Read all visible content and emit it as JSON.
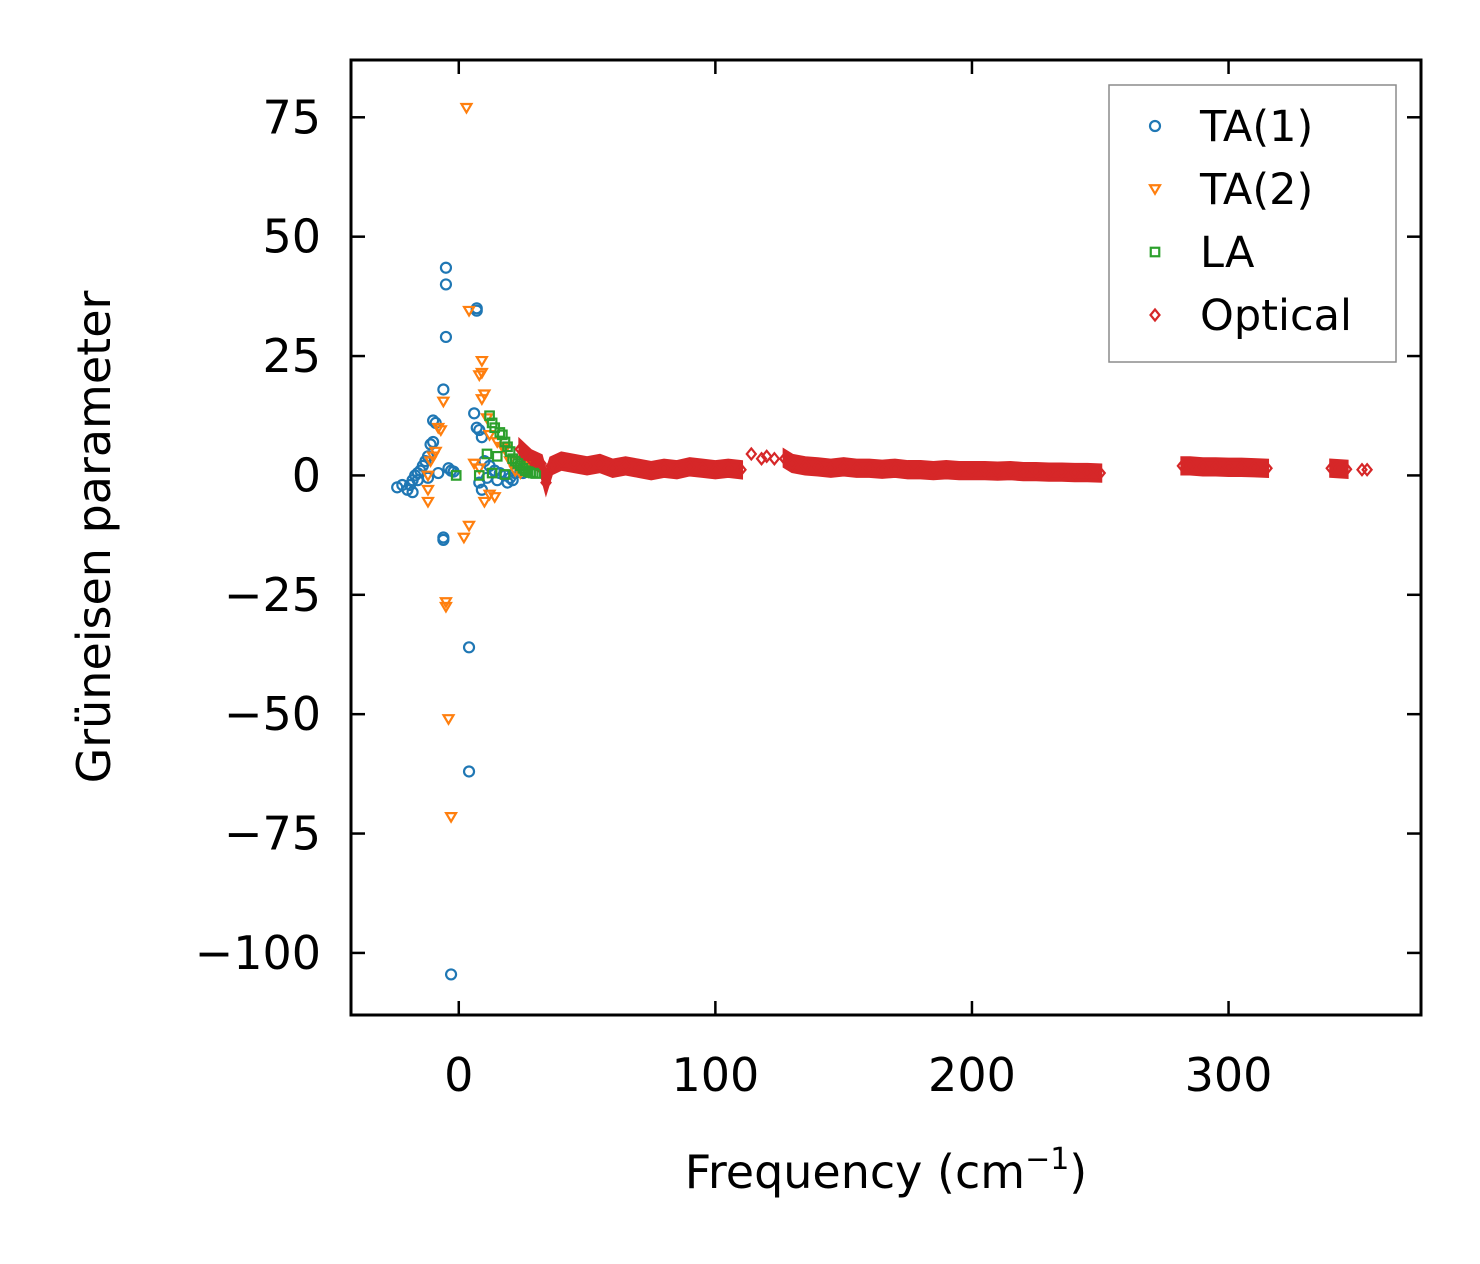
{
  "chart_data": {
    "type": "scatter",
    "title": "",
    "xlabel": "Frequency (cm",
    "xlabel_sup": "−1",
    "xlabel_end": ")",
    "ylabel": "Grüneisen parameter",
    "xlim": [
      -42,
      375
    ],
    "ylim": [
      -113,
      87
    ],
    "xticks": [
      0,
      100,
      200,
      300
    ],
    "xtick_labels": [
      "0",
      "100",
      "200",
      "300"
    ],
    "yticks": [
      75,
      50,
      25,
      0,
      -25,
      -50,
      -75,
      -100
    ],
    "ytick_labels": [
      "75",
      "50",
      "25",
      "0",
      "−25",
      "−50",
      "−75",
      "−100"
    ],
    "grid": false,
    "legend_position": "top-right",
    "series": [
      {
        "name": "TA(1)",
        "color": "#1f77b4",
        "marker": "circle",
        "points": [
          [
            -5,
            43.5
          ],
          [
            -5,
            40
          ],
          [
            -5,
            29
          ],
          [
            7,
            35
          ],
          [
            7,
            34.5
          ],
          [
            -6,
            18
          ],
          [
            -10,
            11.5
          ],
          [
            -9,
            11
          ],
          [
            6,
            13
          ],
          [
            7,
            10
          ],
          [
            8,
            9.5
          ],
          [
            9,
            8
          ],
          [
            -10,
            7
          ],
          [
            -11,
            6.5
          ],
          [
            -12,
            4
          ],
          [
            -13,
            3
          ],
          [
            -14,
            2
          ],
          [
            -15,
            1
          ],
          [
            -16,
            0.5
          ],
          [
            -17,
            0
          ],
          [
            -18,
            -1
          ],
          [
            -19,
            -2
          ],
          [
            -20,
            -3
          ],
          [
            -22,
            -2
          ],
          [
            -24,
            -2.5
          ],
          [
            -18,
            -3.5
          ],
          [
            -16,
            -1
          ],
          [
            -12,
            -0.5
          ],
          [
            -8,
            0.5
          ],
          [
            -4,
            1.5
          ],
          [
            -3,
            1
          ],
          [
            -2,
            0.8
          ],
          [
            9,
            -3
          ],
          [
            10,
            3
          ],
          [
            12,
            2
          ],
          [
            14,
            1
          ],
          [
            16,
            0.5
          ],
          [
            18,
            0
          ],
          [
            20,
            -0.5
          ],
          [
            22,
            0.5
          ],
          [
            24,
            1
          ],
          [
            -6,
            -13.5
          ],
          [
            -6,
            -13
          ],
          [
            4,
            -36
          ],
          [
            4,
            -62
          ],
          [
            -3,
            -104.5
          ],
          [
            8,
            -1.5
          ],
          [
            11,
            -0.5
          ],
          [
            15,
            -1
          ],
          [
            19,
            -1.5
          ],
          [
            21,
            -1
          ],
          [
            25,
            0.5
          ]
        ]
      },
      {
        "name": "TA(2)",
        "color": "#ff7f0e",
        "marker": "triangle-down",
        "points": [
          [
            3,
            77
          ],
          [
            4,
            34.5
          ],
          [
            9,
            24
          ],
          [
            9,
            21.5
          ],
          [
            8,
            21
          ],
          [
            10,
            17
          ],
          [
            9,
            16
          ],
          [
            -6,
            15.5
          ],
          [
            11,
            12
          ],
          [
            -8,
            10
          ],
          [
            -7,
            9.5
          ],
          [
            12,
            8.5
          ],
          [
            15,
            7
          ],
          [
            17,
            6
          ],
          [
            18,
            5.5
          ],
          [
            -9,
            5
          ],
          [
            -10,
            4
          ],
          [
            -11,
            3
          ],
          [
            20,
            3
          ],
          [
            6,
            2.5
          ],
          [
            8,
            1.5
          ],
          [
            -12,
            0
          ],
          [
            -12,
            -3
          ],
          [
            -12,
            -5.5
          ],
          [
            10,
            -5.5
          ],
          [
            12,
            -4
          ],
          [
            14,
            -4.5
          ],
          [
            4,
            -10.5
          ],
          [
            2,
            -13
          ],
          [
            -5,
            -26.5
          ],
          [
            -5,
            -27.5
          ],
          [
            -4,
            -51
          ],
          [
            -3,
            -71.5
          ],
          [
            22,
            1
          ],
          [
            24,
            0.5
          ],
          [
            26,
            2
          ]
        ]
      },
      {
        "name": "LA",
        "color": "#2ca02c",
        "marker": "square",
        "points": [
          [
            12,
            12.5
          ],
          [
            13,
            11
          ],
          [
            14,
            10
          ],
          [
            16,
            9
          ],
          [
            17,
            8.5
          ],
          [
            18,
            7
          ],
          [
            19,
            6
          ],
          [
            20,
            5
          ],
          [
            11,
            4.5
          ],
          [
            15,
            4
          ],
          [
            21,
            3.5
          ],
          [
            22,
            3
          ],
          [
            23,
            2.5
          ],
          [
            24,
            2
          ],
          [
            25,
            1.5
          ],
          [
            26,
            1
          ],
          [
            27,
            0.8
          ],
          [
            28,
            0.6
          ],
          [
            29,
            0.5
          ],
          [
            30,
            0.4
          ],
          [
            -1,
            0
          ],
          [
            8,
            0
          ],
          [
            13,
            0.5
          ],
          [
            18,
            0.2
          ]
        ]
      },
      {
        "name": "Optical",
        "color": "#d62728",
        "marker": "diamond",
        "points": [
          [
            24,
            5.5
          ],
          [
            26,
            4.5
          ],
          [
            28,
            3.5
          ],
          [
            30,
            3
          ],
          [
            32,
            2.5
          ],
          [
            34,
            -1.5
          ],
          [
            36,
            2
          ],
          [
            40,
            3
          ],
          [
            45,
            2.5
          ],
          [
            50,
            2
          ],
          [
            55,
            2.5
          ],
          [
            60,
            1.5
          ],
          [
            65,
            2
          ],
          [
            70,
            1.5
          ],
          [
            75,
            1
          ],
          [
            80,
            1.5
          ],
          [
            85,
            1.2
          ],
          [
            90,
            1.8
          ],
          [
            95,
            1.5
          ],
          [
            100,
            1.2
          ],
          [
            105,
            1.5
          ],
          [
            110,
            1.2
          ],
          [
            114,
            4.5
          ],
          [
            118,
            3.5
          ],
          [
            120,
            4
          ],
          [
            123,
            3.5
          ],
          [
            127,
            3.5
          ],
          [
            130,
            2.5
          ],
          [
            135,
            2
          ],
          [
            140,
            1.8
          ],
          [
            145,
            1.5
          ],
          [
            150,
            1.8
          ],
          [
            155,
            1.5
          ],
          [
            160,
            1.5
          ],
          [
            165,
            1.3
          ],
          [
            170,
            1.5
          ],
          [
            175,
            1.2
          ],
          [
            180,
            1.2
          ],
          [
            185,
            1
          ],
          [
            190,
            1.2
          ],
          [
            195,
            1
          ],
          [
            200,
            1
          ],
          [
            205,
            1
          ],
          [
            210,
            0.9
          ],
          [
            215,
            1
          ],
          [
            220,
            0.8
          ],
          [
            225,
            0.8
          ],
          [
            230,
            0.7
          ],
          [
            235,
            0.7
          ],
          [
            240,
            0.6
          ],
          [
            245,
            0.6
          ],
          [
            250,
            0.5
          ],
          [
            282,
            2
          ],
          [
            285,
            2
          ],
          [
            290,
            1.8
          ],
          [
            295,
            1.8
          ],
          [
            300,
            1.7
          ],
          [
            305,
            1.7
          ],
          [
            310,
            1.6
          ],
          [
            315,
            1.5
          ],
          [
            340,
            1.5
          ],
          [
            343,
            1.4
          ],
          [
            346,
            1.3
          ],
          [
            352,
            1.2
          ],
          [
            354,
            1.2
          ]
        ]
      }
    ]
  }
}
